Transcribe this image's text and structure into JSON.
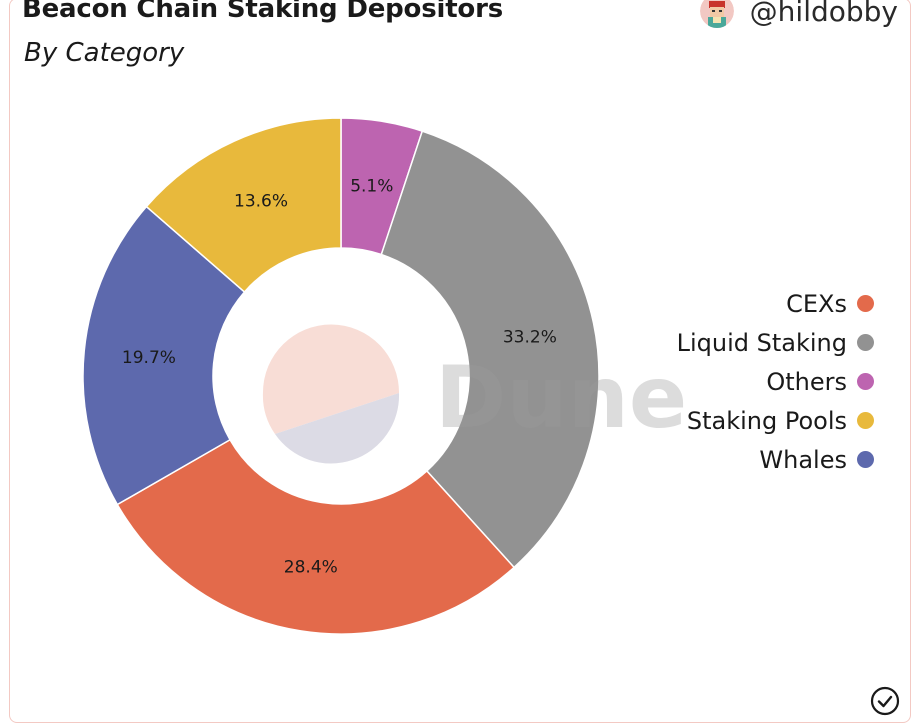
{
  "header": {
    "title": "Beacon Chain Staking Depositors",
    "subtitle": "By Category",
    "handle": "@hildobby"
  },
  "watermark": "Dune",
  "icons": {
    "avatar": "avatar-icon",
    "verified": "check-circle-icon"
  },
  "chart_data": {
    "type": "pie",
    "title": "Beacon Chain Staking Depositors",
    "subtitle": "By Category",
    "donut": true,
    "legend_position": "right",
    "categories": [
      "CEXs",
      "Liquid Staking",
      "Others",
      "Staking Pools",
      "Whales"
    ],
    "values": [
      28.4,
      33.2,
      5.1,
      13.6,
      19.7
    ],
    "labels": [
      "28.4%",
      "33.2%",
      "5.1%",
      "13.6%",
      "19.7%"
    ],
    "colors": [
      "#e36a4b",
      "#929292",
      "#bd64b0",
      "#e8b93c",
      "#5d69ad"
    ],
    "draw_order": [
      "Others",
      "Liquid Staking",
      "CEXs",
      "Whales",
      "Staking Pools"
    ]
  }
}
